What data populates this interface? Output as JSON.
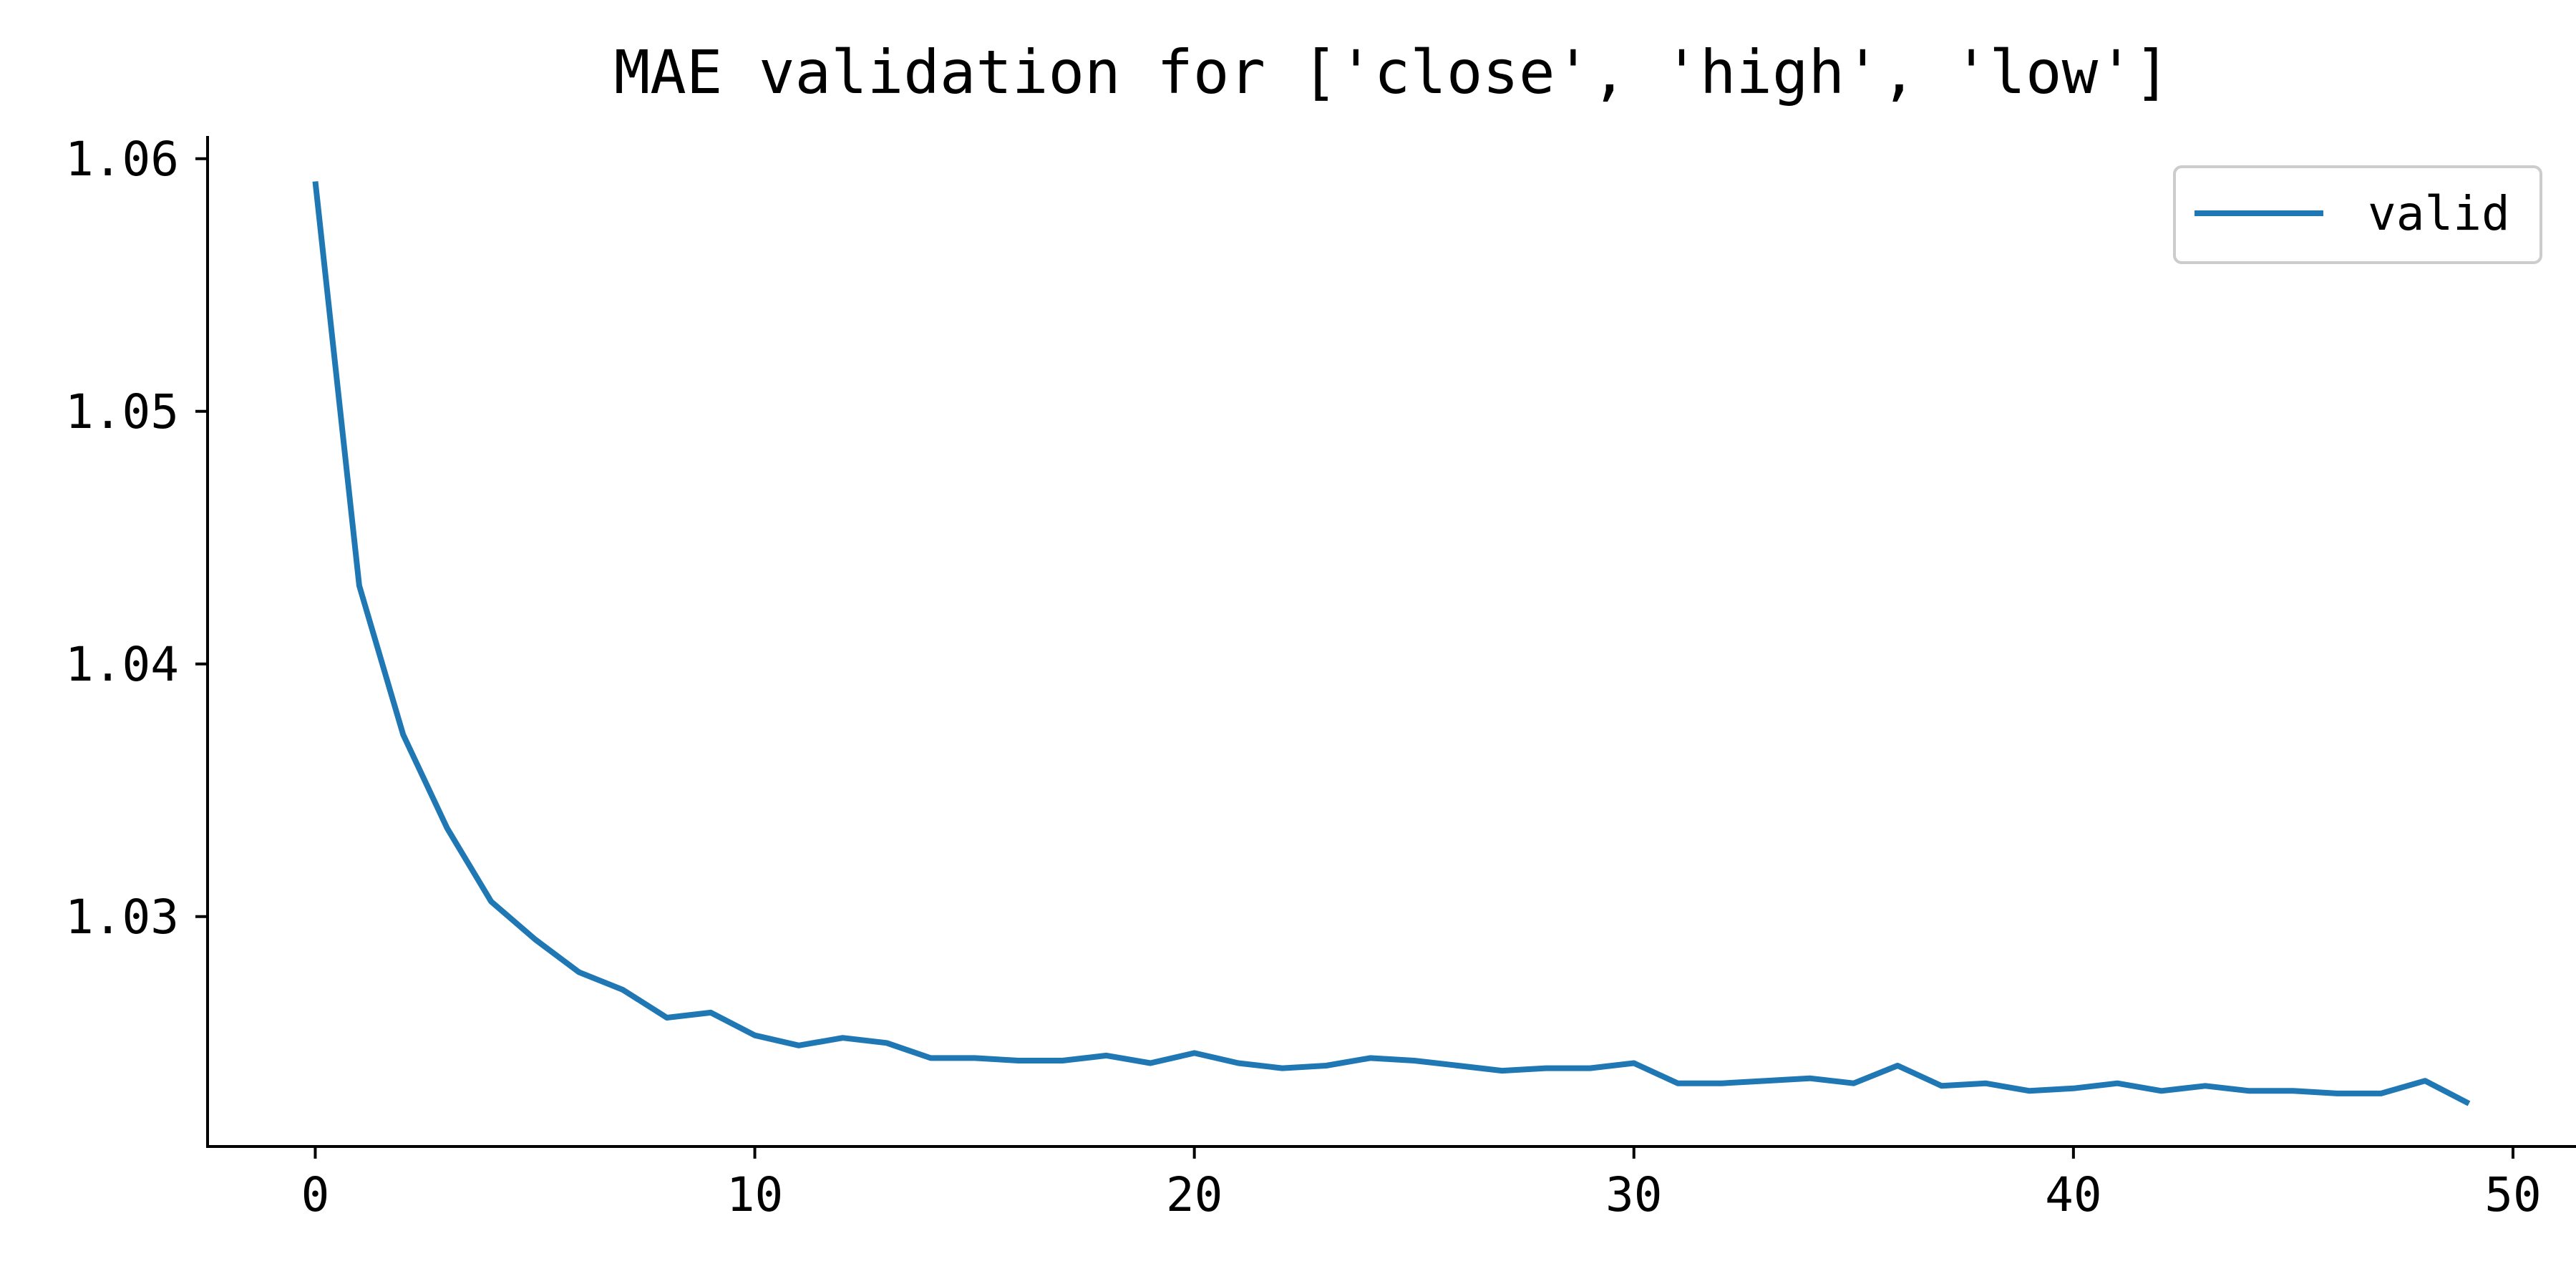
{
  "chart_data": {
    "type": "line",
    "title": "MAE validation for ['close', 'high', 'low']",
    "xlabel": "",
    "ylabel": "",
    "xlim": [
      -2.45,
      51.45
    ],
    "ylim": [
      1.0209,
      1.0609
    ],
    "xticks": [
      0,
      10,
      20,
      30,
      40,
      50
    ],
    "xtick_labels": [
      "0",
      "10",
      "20",
      "30",
      "40",
      "50"
    ],
    "yticks": [
      1.03,
      1.04,
      1.05,
      1.06
    ],
    "ytick_labels": [
      "1.03",
      "1.04",
      "1.05",
      "1.06"
    ],
    "grid": false,
    "legend_position": "top-right",
    "series": [
      {
        "name": "valid",
        "color": "#1f77b4",
        "x": [
          0,
          1,
          2,
          3,
          4,
          5,
          6,
          7,
          8,
          9,
          10,
          11,
          12,
          13,
          14,
          15,
          16,
          17,
          18,
          19,
          20,
          21,
          22,
          23,
          24,
          25,
          26,
          27,
          28,
          29,
          30,
          31,
          32,
          33,
          34,
          35,
          36,
          37,
          38,
          39,
          40,
          41,
          42,
          43,
          44,
          45,
          46,
          47,
          48,
          49
        ],
        "values": [
          1.0591,
          1.0431,
          1.0372,
          1.0335,
          1.0306,
          1.0291,
          1.0278,
          1.0271,
          1.026,
          1.0262,
          1.0253,
          1.0249,
          1.0252,
          1.025,
          1.0244,
          1.0244,
          1.0243,
          1.0243,
          1.0245,
          1.0242,
          1.0246,
          1.0242,
          1.024,
          1.0241,
          1.0244,
          1.0243,
          1.0241,
          1.0239,
          1.024,
          1.024,
          1.0242,
          1.0234,
          1.0234,
          1.0235,
          1.0236,
          1.0234,
          1.0241,
          1.0233,
          1.0234,
          1.0231,
          1.0232,
          1.0234,
          1.0231,
          1.0233,
          1.0231,
          1.0231,
          1.023,
          1.023,
          1.0235,
          1.0226
        ]
      }
    ]
  }
}
